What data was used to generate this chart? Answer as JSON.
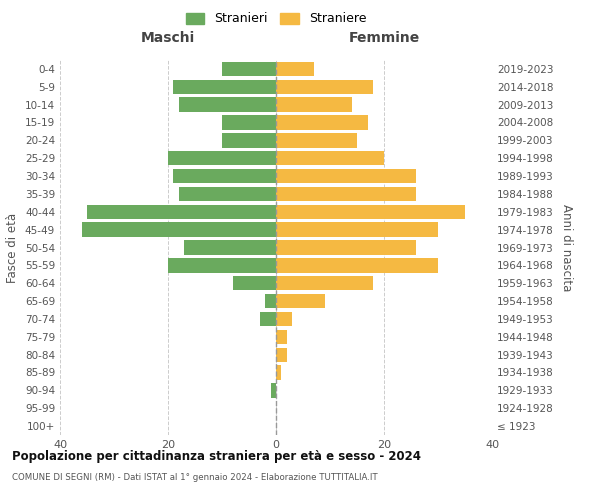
{
  "age_groups": [
    "100+",
    "95-99",
    "90-94",
    "85-89",
    "80-84",
    "75-79",
    "70-74",
    "65-69",
    "60-64",
    "55-59",
    "50-54",
    "45-49",
    "40-44",
    "35-39",
    "30-34",
    "25-29",
    "20-24",
    "15-19",
    "10-14",
    "5-9",
    "0-4"
  ],
  "birth_years": [
    "≤ 1923",
    "1924-1928",
    "1929-1933",
    "1934-1938",
    "1939-1943",
    "1944-1948",
    "1949-1953",
    "1954-1958",
    "1959-1963",
    "1964-1968",
    "1969-1973",
    "1974-1978",
    "1979-1983",
    "1984-1988",
    "1989-1993",
    "1994-1998",
    "1999-2003",
    "2004-2008",
    "2009-2013",
    "2014-2018",
    "2019-2023"
  ],
  "males": [
    0,
    0,
    1,
    0,
    0,
    0,
    3,
    2,
    8,
    20,
    17,
    36,
    35,
    18,
    19,
    20,
    10,
    10,
    18,
    19,
    10
  ],
  "females": [
    0,
    0,
    0,
    1,
    2,
    2,
    3,
    9,
    18,
    30,
    26,
    30,
    35,
    26,
    26,
    20,
    15,
    17,
    14,
    18,
    7
  ],
  "male_color": "#6aaa5e",
  "female_color": "#f5b942",
  "title": "Popolazione per cittadinanza straniera per età e sesso - 2024",
  "subtitle": "COMUNE DI SEGNI (RM) - Dati ISTAT al 1° gennaio 2024 - Elaborazione TUTTITALIA.IT",
  "xlabel_left": "Maschi",
  "xlabel_right": "Femmine",
  "ylabel_left": "Fasce di età",
  "ylabel_right": "Anni di nascita",
  "legend_male": "Stranieri",
  "legend_female": "Straniere",
  "xlim": 40,
  "bg_color": "#ffffff",
  "grid_color": "#cccccc",
  "bar_height": 0.8
}
